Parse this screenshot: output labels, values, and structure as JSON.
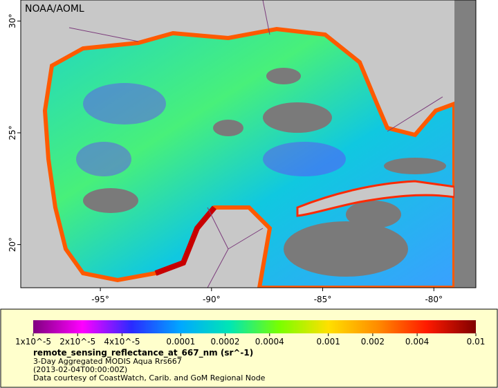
{
  "map": {
    "credit": "NOAA/AOML",
    "xlim": [
      -98.58,
      -78.11
    ],
    "xticks": [
      {
        "value": -95,
        "label": "-95°"
      },
      {
        "value": -90,
        "label": "-90°"
      },
      {
        "value": -85,
        "label": "-85°"
      },
      {
        "value": -80,
        "label": "-80°"
      }
    ],
    "ylim": [
      18.07,
      30.94
    ],
    "yticks": [
      {
        "value": 20,
        "label": "20°"
      },
      {
        "value": 25,
        "label": "25°"
      },
      {
        "value": 30,
        "label": "30°"
      }
    ]
  },
  "colorbar": {
    "log_scale": true,
    "lim": [
      1e-05,
      0.01
    ],
    "colors": [
      "#80007f",
      "#ff00ff",
      "#2a2aff",
      "#00a8ff",
      "#00e6b4",
      "#78ff00",
      "#ffe000",
      "#ff8c00",
      "#ff1a00",
      "#800000"
    ],
    "ticks": [
      {
        "value": 1e-05,
        "label": "1x10^-5"
      },
      {
        "value": 2e-05,
        "label": "2x10^-5"
      },
      {
        "value": 4e-05,
        "label": "4x10^-5"
      },
      0.0001,
      0.0002,
      0.0004,
      0.001,
      0.002,
      0.004,
      0.01
    ],
    "title": "remote_sensing_reflectance_at_667_nm (sr^-1)",
    "lines": [
      "3-Day Aggregated MODIS Aqua Rrs667",
      "(2013-02-04T00:00:00Z)",
      "Data courtesy of CoastWatch, Carib. and GoM Regional Node"
    ]
  }
}
